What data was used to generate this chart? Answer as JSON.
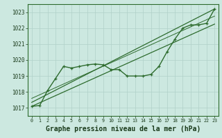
{
  "title": "",
  "xlabel": "Graphe pression niveau de la mer (hPa)",
  "bg_color": "#cce8e0",
  "grid_color": "#b0d0c8",
  "line_color": "#2d6b2d",
  "xlim": [
    -0.5,
    23.5
  ],
  "ylim": [
    1016.5,
    1023.5
  ],
  "yticks": [
    1017,
    1018,
    1019,
    1020,
    1021,
    1022,
    1023
  ],
  "xticks": [
    0,
    1,
    2,
    3,
    4,
    5,
    6,
    7,
    8,
    9,
    10,
    11,
    12,
    13,
    14,
    15,
    16,
    17,
    18,
    19,
    20,
    21,
    22,
    23
  ],
  "series": [
    {
      "x": [
        0,
        1,
        2,
        3,
        4,
        5,
        6,
        7,
        8,
        9,
        10,
        11,
        12,
        13,
        14,
        15,
        16,
        17,
        18,
        19,
        20,
        21,
        22,
        23
      ],
      "y": [
        1017.1,
        1017.15,
        1018.1,
        1018.85,
        1019.6,
        1019.5,
        1019.6,
        1019.7,
        1019.75,
        1019.7,
        1019.4,
        1019.4,
        1019.0,
        1019.0,
        1019.0,
        1019.1,
        1019.6,
        1020.5,
        1021.3,
        1022.0,
        1022.2,
        1022.2,
        1022.3,
        1023.2
      ],
      "marker": true,
      "linewidth": 1.0
    },
    {
      "x": [
        0,
        23
      ],
      "y": [
        1017.1,
        1022.25
      ],
      "marker": false,
      "linewidth": 0.9
    },
    {
      "x": [
        0,
        23
      ],
      "y": [
        1017.35,
        1023.2
      ],
      "marker": false,
      "linewidth": 0.9
    },
    {
      "x": [
        0,
        23
      ],
      "y": [
        1017.6,
        1022.75
      ],
      "marker": false,
      "linewidth": 0.7
    }
  ]
}
